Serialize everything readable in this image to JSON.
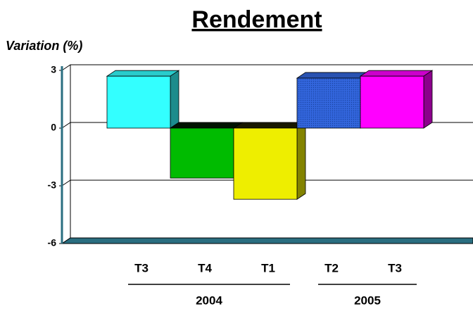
{
  "chart_data": {
    "type": "bar3d",
    "title": "Rendement",
    "y_axis_label": "Variation (%)",
    "categories": [
      "T3",
      "T4",
      "T1",
      "T2",
      "T3"
    ],
    "groups": [
      "2004",
      "2005"
    ],
    "values": [
      2.7,
      -2.6,
      -3.7,
      2.6,
      2.7
    ],
    "colors": [
      "#33ffff",
      "#00bb00",
      "#eeee00",
      "#3366dd",
      "#ff00ff"
    ],
    "ylim": [
      -6,
      3
    ],
    "yticks": [
      -6,
      -3,
      0,
      3
    ],
    "grid": true
  }
}
